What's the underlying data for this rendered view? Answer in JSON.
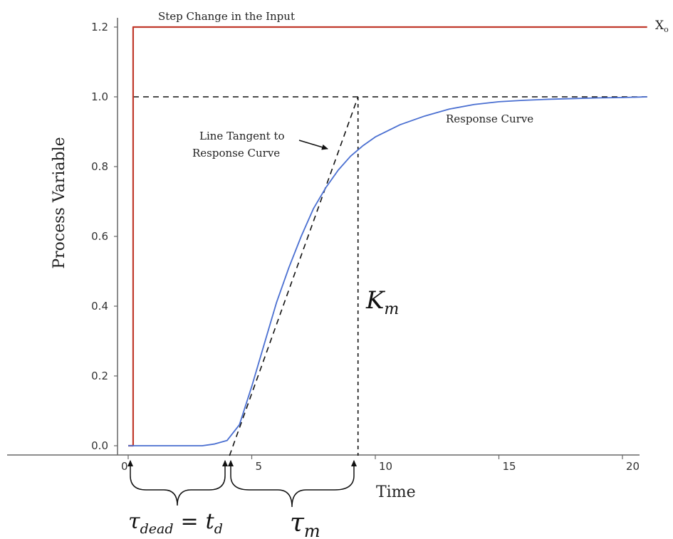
{
  "chart_data": {
    "type": "line",
    "title": "",
    "xlabel": "Time",
    "ylabel": "Process Variable",
    "xlim": [
      0,
      21
    ],
    "ylim": [
      0,
      1.2
    ],
    "x_ticks": [
      "0",
      "5",
      "10",
      "15",
      "20"
    ],
    "y_ticks": [
      "0.0",
      "0.2",
      "0.4",
      "0.6",
      "0.8",
      "1.0",
      "1.2"
    ],
    "series": [
      {
        "name": "Step Change in the Input",
        "color": "#c0392b",
        "x": [
          0,
          0.2,
          0.2,
          21
        ],
        "y": [
          0,
          0,
          1.2,
          1.2
        ]
      },
      {
        "name": "Response Curve",
        "color": "#4a6fd1",
        "x": [
          0,
          1,
          2,
          3,
          3.5,
          4,
          4.5,
          5,
          5.5,
          6,
          6.5,
          7,
          7.5,
          8,
          8.5,
          9,
          9.5,
          10,
          11,
          12,
          13,
          14,
          15,
          16,
          17,
          18,
          19,
          20,
          21
        ],
        "y": [
          0,
          0,
          0,
          0,
          0.005,
          0.015,
          0.06,
          0.17,
          0.29,
          0.41,
          0.51,
          0.6,
          0.68,
          0.74,
          0.79,
          0.83,
          0.86,
          0.885,
          0.92,
          0.945,
          0.965,
          0.978,
          0.986,
          0.99,
          0.993,
          0.995,
          0.997,
          0.998,
          1.0
        ]
      }
    ],
    "tangent_line": {
      "name": "Line Tangent to Response Curve",
      "x": [
        4.1,
        9.3
      ],
      "y": [
        0,
        1.0
      ]
    },
    "final_value_line": {
      "y": 1.0
    },
    "km_marker": {
      "x": 9.3
    },
    "annotations": {
      "step_label": "Step Change in the Input",
      "input_label": "X",
      "input_subscript": "o",
      "tangent_label_line1": "Line Tangent to",
      "tangent_label_line2": "Response Curve",
      "response_label": "Response Curve",
      "km_main": "K",
      "km_sub": "m",
      "tau_dead_main": "τ",
      "tau_dead_sub": "dead",
      "tau_dead_eq": "=",
      "td_main": "t",
      "td_sub": "d",
      "tau_m_main": "τ",
      "tau_m_sub": "m"
    }
  }
}
